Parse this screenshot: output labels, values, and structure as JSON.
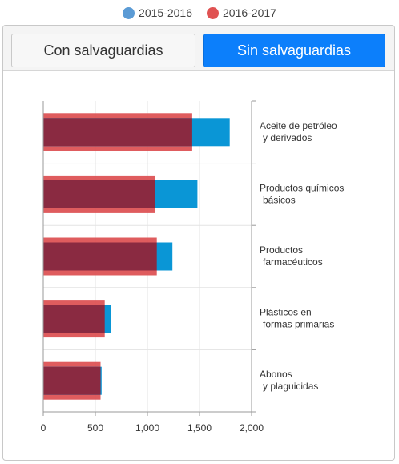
{
  "legend": [
    {
      "label": "2015-2016",
      "color": "#5b9bd5"
    },
    {
      "label": "2016-2017",
      "color": "#e05252"
    }
  ],
  "tabs": [
    {
      "label": "Con salvaguardias"
    },
    {
      "label": "Sin salvaguardias"
    }
  ],
  "chart_data": {
    "type": "bar",
    "orientation": "horizontal",
    "categories": [
      [
        "Aceite de petróleo",
        "y derivados"
      ],
      [
        "Productos químicos",
        "básicos"
      ],
      [
        "Productos",
        "farmacéuticos"
      ],
      [
        "Plásticos en",
        "formas primarias"
      ],
      [
        "Abonos",
        "y plaguicidas"
      ]
    ],
    "series": [
      {
        "name": "2015-2016",
        "color": "#0a96d6",
        "values": [
          1790,
          1480,
          1240,
          650,
          560
        ]
      },
      {
        "name": "2016-2017",
        "color": "#dc4a4d",
        "values": [
          1430,
          1070,
          1090,
          590,
          550
        ]
      }
    ],
    "xlim": [
      0,
      2000
    ],
    "xticks": [
      0,
      500,
      1000,
      1500,
      2000
    ],
    "xtick_labels": [
      "0",
      "500",
      "1,000",
      "1,500",
      "2,000"
    ],
    "grid": true,
    "legend_position": "top"
  }
}
